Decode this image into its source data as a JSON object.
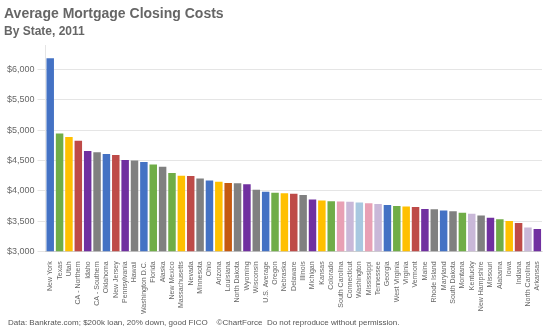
{
  "chart_data": {
    "type": "bar",
    "title": "Average Mortgage Closing Costs",
    "subtitle": "By State, 2011",
    "annotations": [
      "Data: Bankrate.com; $200k loan, 20% down, good FICO    ©ChartForce  Do not reproduce without permission."
    ],
    "categories": [
      "New York",
      "Texas",
      "Utah",
      "CA - Northern",
      "Idaho",
      "CA - Southern",
      "Oklahoma",
      "New Jersey",
      "Pennsylvania",
      "Hawaii",
      "Washington D.C.",
      "Florida",
      "Alaska",
      "New Mexico",
      "Massachusetts",
      "Nevada",
      "Minnesota",
      "Ohio",
      "Arizona",
      "Louisiana",
      "North Dakota",
      "Wyoming",
      "Wisconsin",
      "U.S. Average",
      "Oregon",
      "Nebraska",
      "Delaware",
      "Illinois",
      "Michigan",
      "Kansas",
      "Colorado",
      "South Carolina",
      "Connecticut",
      "Washington",
      "Mississippi",
      "Tennessee",
      "Georgia",
      "West Virginia",
      "Virginia",
      "Vermont",
      "Maine",
      "Rhode Island",
      "Maryland",
      "South Dakota",
      "Montana",
      "Kentucky",
      "New Hampshire",
      "Missouri",
      "Alabama",
      "Iowa",
      "Indiana",
      "North Carolina",
      "Arkansas"
    ],
    "values": [
      6183,
      4944,
      4886,
      4824,
      4657,
      4633,
      4606,
      4588,
      4506,
      4500,
      4474,
      4434,
      4397,
      4293,
      4248,
      4243,
      4200,
      4170,
      4148,
      4128,
      4124,
      4106,
      4018,
      3984,
      3966,
      3958,
      3952,
      3930,
      3857,
      3840,
      3825,
      3822,
      3817,
      3806,
      3793,
      3782,
      3764,
      3750,
      3740,
      3730,
      3700,
      3696,
      3672,
      3660,
      3638,
      3620,
      3591,
      3554,
      3530,
      3500,
      3469,
      3394,
      3368
    ],
    "colors": [
      "#4472C4",
      "#70AD47",
      "#FFC000",
      "#BE4B48",
      "#7030A0",
      "#808080",
      "#4472C4",
      "#BE4B48",
      "#7030A0",
      "#808080",
      "#4472C4",
      "#70AD47",
      "#808080",
      "#70AD47",
      "#FFC000",
      "#BE4B48",
      "#808080",
      "#4472C4",
      "#FFC000",
      "#C55A11",
      "#808080",
      "#7030A0",
      "#808080",
      "#4472C4",
      "#70AD47",
      "#FFC000",
      "#BE4B48",
      "#808080",
      "#7030A0",
      "#FFC000",
      "#70AD47",
      "#E8A0B4",
      "#C9B8D8",
      "#A8C8E0",
      "#E8A0B4",
      "#C9B8D8",
      "#4472C4",
      "#70AD47",
      "#FFC000",
      "#BE4B48",
      "#7030A0",
      "#808080",
      "#4472C4",
      "#808080",
      "#70AD47",
      "#C9B8D8",
      "#808080",
      "#7030A0",
      "#70AD47",
      "#FFC000",
      "#BE4B48",
      "#C9B8D8",
      "#7030A0"
    ],
    "ylim": [
      3000,
      6400
    ],
    "yticks": [
      {
        "value": 3000,
        "label": "$3,000"
      },
      {
        "value": 3500,
        "label": "$3,500"
      },
      {
        "value": 4000,
        "label": "$4,000"
      },
      {
        "value": 4500,
        "label": "$4,500"
      },
      {
        "value": 5000,
        "label": "$5,000"
      },
      {
        "value": 5500,
        "label": "$5,500"
      },
      {
        "value": 6000,
        "label": "$6,000"
      }
    ],
    "grid": true
  }
}
